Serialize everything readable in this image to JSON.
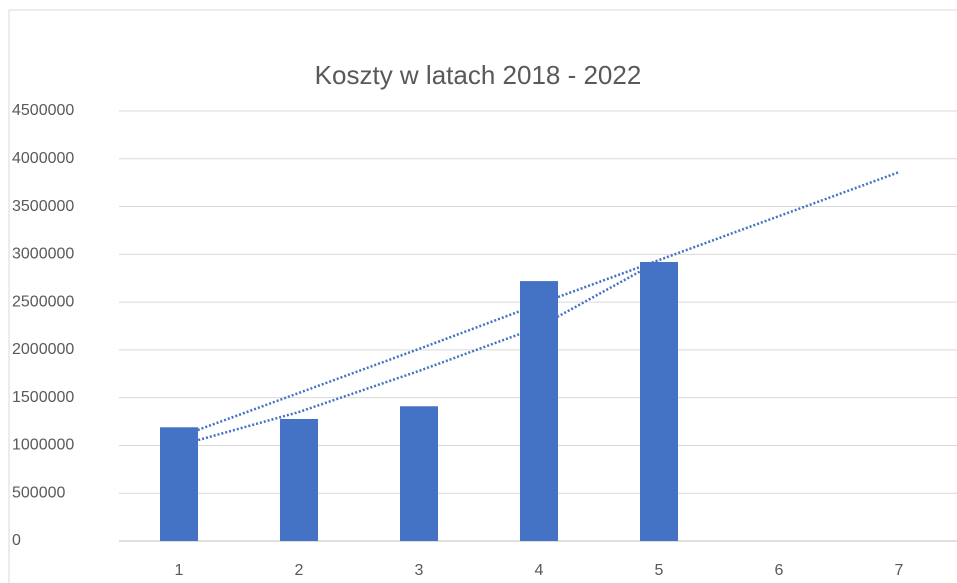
{
  "chart_data": {
    "type": "bar",
    "title": "Koszty w latach 2018 - 2022",
    "categories": [
      "1",
      "2",
      "3",
      "4",
      "5",
      "6",
      "7"
    ],
    "series": [
      {
        "color": "#4472c4",
        "values": [
          1190000,
          1277000,
          1410000,
          2720000,
          2920000,
          null,
          null
        ]
      }
    ],
    "trendlines": [
      {
        "color": "#4472c4",
        "values": [
          1090000,
          1550000,
          2010000,
          2480000,
          2940000,
          3400000,
          3860000
        ]
      },
      {
        "color": "#4472c4",
        "values": [
          1000000,
          1350000,
          1780000,
          2240000,
          2930000,
          null,
          null
        ]
      }
    ],
    "ylim": [
      0,
      4500000
    ],
    "yticks": [
      0,
      500000,
      1000000,
      1500000,
      2000000,
      2500000,
      3000000,
      3500000,
      4000000,
      4500000
    ],
    "grid": true
  }
}
